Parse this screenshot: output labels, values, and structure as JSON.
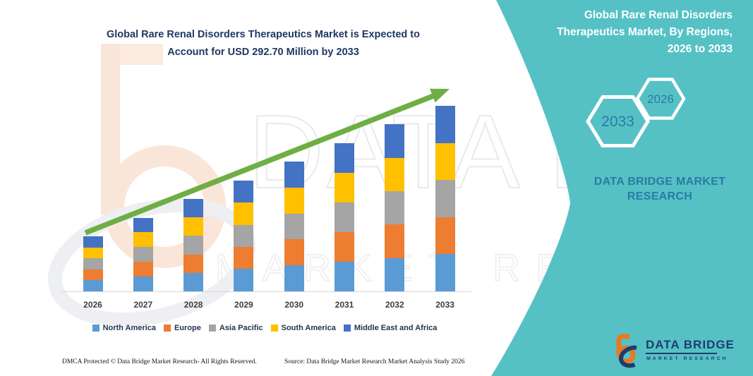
{
  "chart": {
    "title_lines": [
      "Global Rare Renal Disorders Therapeutics Market is Expected to",
      "Account for USD 292.70 Million by 2033"
    ]
  },
  "chart_data": {
    "type": "bar",
    "stacked": true,
    "title": "Global Rare Renal Disorders Therapeutics Market is Expected to Account for USD 292.70 Million by 2033",
    "unit": "USD Million",
    "categories": [
      "2026",
      "2027",
      "2028",
      "2029",
      "2030",
      "2031",
      "2032",
      "2033"
    ],
    "series": [
      {
        "name": "North America",
        "color": "#5B9BD5",
        "values": [
          17.38,
          23.26,
          29.14,
          35.02,
          40.9,
          46.78,
          52.66,
          58.54
        ]
      },
      {
        "name": "Europe",
        "color": "#ED7D31",
        "values": [
          17.38,
          23.26,
          29.14,
          35.02,
          40.9,
          46.78,
          52.66,
          58.54
        ]
      },
      {
        "name": "Asia Pacific",
        "color": "#A5A5A5",
        "values": [
          17.38,
          23.26,
          29.14,
          35.02,
          40.9,
          46.78,
          52.66,
          58.54
        ]
      },
      {
        "name": "South America",
        "color": "#FFC000",
        "values": [
          17.38,
          23.26,
          29.14,
          35.02,
          40.9,
          46.78,
          52.66,
          58.54
        ]
      },
      {
        "name": "Middle East and Africa",
        "color": "#4472C4",
        "values": [
          17.38,
          23.26,
          29.14,
          35.02,
          40.9,
          46.78,
          52.66,
          58.54
        ]
      }
    ],
    "totals": [
      86.9,
      116.3,
      145.7,
      175.1,
      204.5,
      233.9,
      263.3,
      292.7
    ],
    "highlight": "USD 292.70 Million by 2033",
    "ylim": [
      0,
      300
    ],
    "grid": false,
    "legend_position": "bottom",
    "trend_arrow": true
  },
  "side_panel": {
    "heading_lines": [
      "Global Rare Renal Disorders",
      "Therapeutics Market, By Regions,",
      "2026 to 2033"
    ],
    "hexagons": {
      "back_year": "2033",
      "front_year": "2026"
    },
    "brand_text": "DATA BRIDGE MARKET RESEARCH"
  },
  "branding": {
    "logo_title": "DATA BRIDGE",
    "logo_subtitle": "MARKET RESEARCH"
  },
  "watermark": {
    "big_text": "DATA BRIDGE",
    "sub_text": "MARKET RESEARCH"
  },
  "footer": {
    "dmca": "DMCA Protected © Data Bridge Market Research-  All Rights Reserved.",
    "source": "Source: Data Bridge Market Research  Market Analysis Study 2026"
  },
  "colors": {
    "teal_panel": "#56c1c5",
    "title_navy": "#1f3864",
    "arrow_green": "#6fae44",
    "hexagon_year_text": "#2b7aa6",
    "logo_navy": "#1c3e6e",
    "logo_orange": "#e87824"
  }
}
